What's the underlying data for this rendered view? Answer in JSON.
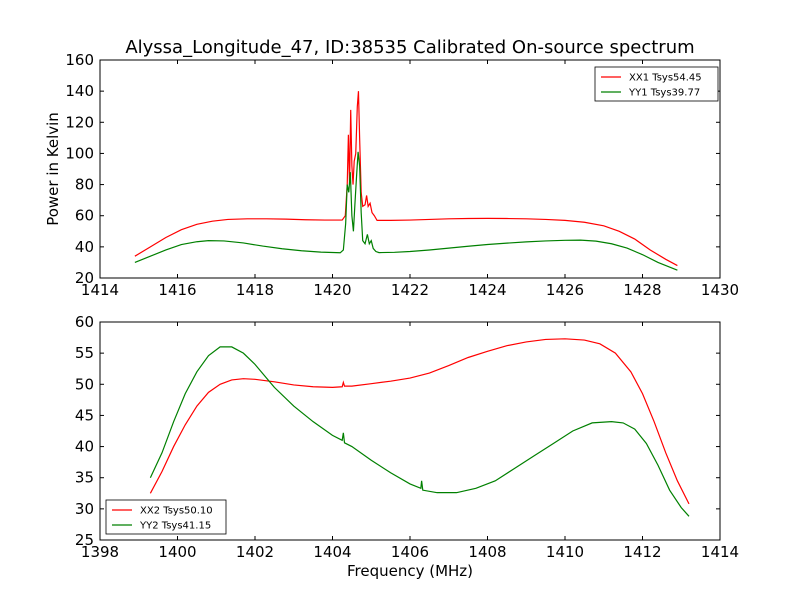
{
  "figure": {
    "title": "Alyssa_Longitude_47, ID:38535 Calibrated On-source spectrum"
  },
  "chart_data": [
    {
      "type": "line",
      "title": "Alyssa_Longitude_47, ID:38535 Calibrated On-source spectrum",
      "xlabel": "",
      "ylabel": "Power in Kelvin",
      "xlim": [
        1414,
        1430
      ],
      "ylim": [
        20,
        160
      ],
      "xticks": [
        1414,
        1416,
        1418,
        1420,
        1422,
        1424,
        1426,
        1428,
        1430
      ],
      "yticks": [
        20,
        40,
        60,
        80,
        100,
        120,
        140,
        160
      ],
      "grid": false,
      "legend_position": "upper right",
      "series": [
        {
          "name": "XX1 Tsys54.45",
          "color": "#ff0000",
          "points": [
            [
              1414.9,
              34
            ],
            [
              1415.3,
              40
            ],
            [
              1415.7,
              46
            ],
            [
              1416.1,
              51
            ],
            [
              1416.5,
              54.5
            ],
            [
              1416.9,
              56.5
            ],
            [
              1417.3,
              57.6
            ],
            [
              1417.8,
              58
            ],
            [
              1418.3,
              58
            ],
            [
              1418.8,
              57.8
            ],
            [
              1419.3,
              57.4
            ],
            [
              1419.8,
              57.2
            ],
            [
              1420.25,
              57.2
            ],
            [
              1420.33,
              60
            ],
            [
              1420.38,
              80
            ],
            [
              1420.41,
              112
            ],
            [
              1420.44,
              80
            ],
            [
              1420.47,
              128
            ],
            [
              1420.5,
              92
            ],
            [
              1420.53,
              80
            ],
            [
              1420.56,
              95
            ],
            [
              1420.6,
              100
            ],
            [
              1420.64,
              130
            ],
            [
              1420.67,
              140
            ],
            [
              1420.7,
              110
            ],
            [
              1420.74,
              75
            ],
            [
              1420.78,
              66
            ],
            [
              1420.84,
              67
            ],
            [
              1420.88,
              73
            ],
            [
              1420.92,
              66
            ],
            [
              1420.97,
              68
            ],
            [
              1421.02,
              62
            ],
            [
              1421.08,
              60
            ],
            [
              1421.15,
              57
            ],
            [
              1421.5,
              57
            ],
            [
              1422,
              57.2
            ],
            [
              1422.5,
              57.6
            ],
            [
              1423,
              58
            ],
            [
              1423.5,
              58.2
            ],
            [
              1424,
              58.3
            ],
            [
              1424.5,
              58.2
            ],
            [
              1425,
              58
            ],
            [
              1425.5,
              57.6
            ],
            [
              1426,
              57
            ],
            [
              1426.5,
              55.8
            ],
            [
              1427,
              53.5
            ],
            [
              1427.4,
              50
            ],
            [
              1427.8,
              45
            ],
            [
              1428.2,
              38
            ],
            [
              1428.6,
              32
            ],
            [
              1428.9,
              28
            ]
          ]
        },
        {
          "name": "YY1 Tsys39.77",
          "color": "#008000",
          "points": [
            [
              1414.9,
              30
            ],
            [
              1415.3,
              34
            ],
            [
              1415.7,
              38
            ],
            [
              1416.1,
              41.5
            ],
            [
              1416.5,
              43.3
            ],
            [
              1416.8,
              44
            ],
            [
              1417.2,
              43.8
            ],
            [
              1417.7,
              42.5
            ],
            [
              1418.2,
              40.5
            ],
            [
              1418.7,
              38.8
            ],
            [
              1419.2,
              37.5
            ],
            [
              1419.7,
              36.6
            ],
            [
              1420.2,
              36.2
            ],
            [
              1420.28,
              38
            ],
            [
              1420.34,
              55
            ],
            [
              1420.38,
              80
            ],
            [
              1420.42,
              75
            ],
            [
              1420.46,
              88
            ],
            [
              1420.5,
              60
            ],
            [
              1420.54,
              50
            ],
            [
              1420.58,
              68
            ],
            [
              1420.62,
              85
            ],
            [
              1420.66,
              101
            ],
            [
              1420.7,
              92
            ],
            [
              1420.74,
              62
            ],
            [
              1420.78,
              44
            ],
            [
              1420.84,
              42
            ],
            [
              1420.9,
              48
            ],
            [
              1420.95,
              42
            ],
            [
              1421.0,
              44
            ],
            [
              1421.05,
              39
            ],
            [
              1421.12,
              37
            ],
            [
              1421.2,
              36.3
            ],
            [
              1421.6,
              36.5
            ],
            [
              1422,
              37
            ],
            [
              1422.5,
              38
            ],
            [
              1423,
              39.2
            ],
            [
              1423.5,
              40.4
            ],
            [
              1424,
              41.5
            ],
            [
              1424.5,
              42.4
            ],
            [
              1425,
              43.2
            ],
            [
              1425.5,
              43.8
            ],
            [
              1426,
              44.2
            ],
            [
              1426.4,
              44.3
            ],
            [
              1426.8,
              43.7
            ],
            [
              1427.2,
              42
            ],
            [
              1427.6,
              39.2
            ],
            [
              1428,
              35
            ],
            [
              1428.4,
              30
            ],
            [
              1428.9,
              25
            ]
          ]
        }
      ]
    },
    {
      "type": "line",
      "title": "",
      "xlabel": "Frequency (MHz)",
      "ylabel": "",
      "xlim": [
        1398,
        1414
      ],
      "ylim": [
        25,
        60
      ],
      "xticks": [
        1398,
        1400,
        1402,
        1404,
        1406,
        1408,
        1410,
        1412,
        1414
      ],
      "yticks": [
        25,
        30,
        35,
        40,
        45,
        50,
        55,
        60
      ],
      "grid": false,
      "legend_position": "lower left",
      "series": [
        {
          "name": "XX2 Tsys50.10",
          "color": "#ff0000",
          "points": [
            [
              1399.3,
              32.5
            ],
            [
              1399.6,
              36
            ],
            [
              1399.9,
              40
            ],
            [
              1400.2,
              43.5
            ],
            [
              1400.5,
              46.5
            ],
            [
              1400.8,
              48.7
            ],
            [
              1401.1,
              50
            ],
            [
              1401.4,
              50.7
            ],
            [
              1401.7,
              50.9
            ],
            [
              1402,
              50.8
            ],
            [
              1402.5,
              50.4
            ],
            [
              1403,
              49.9
            ],
            [
              1403.5,
              49.6
            ],
            [
              1404,
              49.5
            ],
            [
              1404.25,
              49.6
            ],
            [
              1404.28,
              50.3
            ],
            [
              1404.31,
              49.7
            ],
            [
              1404.5,
              49.7
            ],
            [
              1405,
              50.1
            ],
            [
              1405.5,
              50.5
            ],
            [
              1406,
              51
            ],
            [
              1406.5,
              51.8
            ],
            [
              1407,
              53
            ],
            [
              1407.5,
              54.3
            ],
            [
              1408,
              55.3
            ],
            [
              1408.5,
              56.2
            ],
            [
              1409,
              56.8
            ],
            [
              1409.5,
              57.2
            ],
            [
              1410,
              57.3
            ],
            [
              1410.5,
              57.1
            ],
            [
              1410.9,
              56.5
            ],
            [
              1411.3,
              55
            ],
            [
              1411.7,
              52
            ],
            [
              1412,
              48.5
            ],
            [
              1412.3,
              44
            ],
            [
              1412.6,
              39
            ],
            [
              1412.9,
              34.5
            ],
            [
              1413.2,
              30.8
            ]
          ]
        },
        {
          "name": "YY2 Tsys41.15",
          "color": "#008000",
          "points": [
            [
              1399.3,
              35
            ],
            [
              1399.6,
              39
            ],
            [
              1399.9,
              44
            ],
            [
              1400.2,
              48.5
            ],
            [
              1400.5,
              52
            ],
            [
              1400.8,
              54.6
            ],
            [
              1401.1,
              56
            ],
            [
              1401.4,
              56
            ],
            [
              1401.7,
              55
            ],
            [
              1402,
              53.2
            ],
            [
              1402.5,
              49.5
            ],
            [
              1403,
              46.5
            ],
            [
              1403.5,
              44
            ],
            [
              1404,
              41.8
            ],
            [
              1404.25,
              41
            ],
            [
              1404.28,
              42.2
            ],
            [
              1404.31,
              40.6
            ],
            [
              1404.5,
              40
            ],
            [
              1405,
              37.8
            ],
            [
              1405.5,
              35.8
            ],
            [
              1406,
              34
            ],
            [
              1406.28,
              33.3
            ],
            [
              1406.3,
              34.5
            ],
            [
              1406.33,
              33
            ],
            [
              1406.7,
              32.6
            ],
            [
              1407.2,
              32.6
            ],
            [
              1407.7,
              33.3
            ],
            [
              1408.2,
              34.5
            ],
            [
              1408.7,
              36.5
            ],
            [
              1409.2,
              38.5
            ],
            [
              1409.7,
              40.5
            ],
            [
              1410.2,
              42.5
            ],
            [
              1410.7,
              43.8
            ],
            [
              1411.2,
              44
            ],
            [
              1411.5,
              43.8
            ],
            [
              1411.8,
              42.8
            ],
            [
              1412.1,
              40.5
            ],
            [
              1412.4,
              37
            ],
            [
              1412.7,
              33
            ],
            [
              1413,
              30.2
            ],
            [
              1413.2,
              28.8
            ]
          ]
        }
      ]
    }
  ]
}
